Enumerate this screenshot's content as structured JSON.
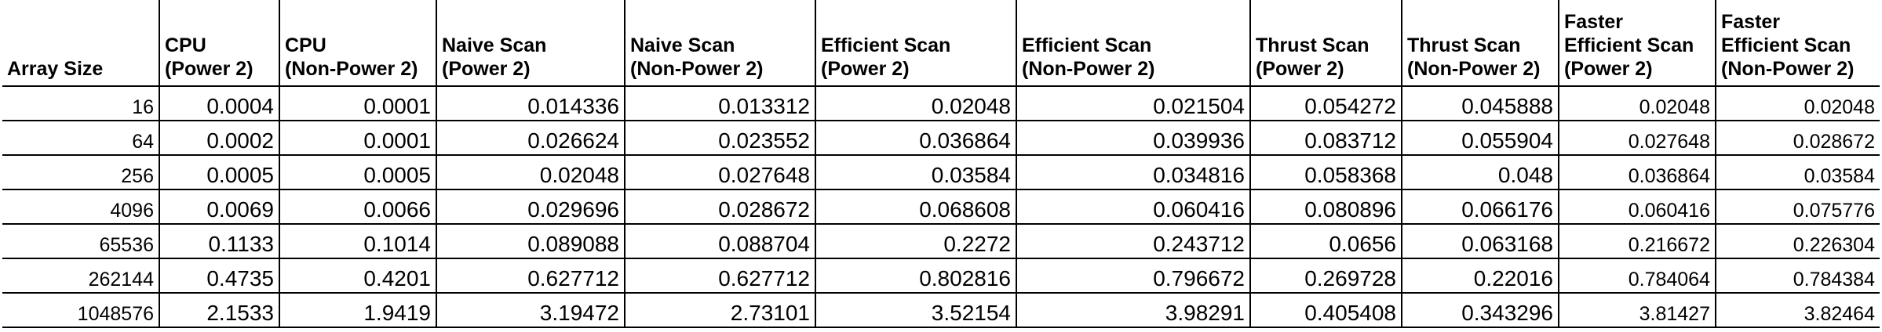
{
  "table": {
    "headers": [
      [
        "Array Size"
      ],
      [
        "CPU",
        "(Power 2)"
      ],
      [
        "CPU",
        "(Non-Power 2)"
      ],
      [
        "Naive Scan",
        "(Power 2)"
      ],
      [
        "Naive Scan",
        "(Non-Power 2)"
      ],
      [
        "Efficient Scan",
        "(Power 2)"
      ],
      [
        "Efficient Scan",
        "(Non-Power 2)"
      ],
      [
        "Thrust Scan",
        "(Power 2)"
      ],
      [
        "Thrust Scan",
        "(Non-Power 2)"
      ],
      [
        "Faster",
        "Efficient Scan",
        "(Power 2)"
      ],
      [
        "Faster",
        "Efficient Scan",
        "(Non-Power 2)"
      ]
    ],
    "rows": [
      [
        "16",
        "0.0004",
        "0.0001",
        "0.014336",
        "0.013312",
        "0.02048",
        "0.021504",
        "0.054272",
        "0.045888",
        "0.02048",
        "0.02048"
      ],
      [
        "64",
        "0.0002",
        "0.0001",
        "0.026624",
        "0.023552",
        "0.036864",
        "0.039936",
        "0.083712",
        "0.055904",
        "0.027648",
        "0.028672"
      ],
      [
        "256",
        "0.0005",
        "0.0005",
        "0.02048",
        "0.027648",
        "0.03584",
        "0.034816",
        "0.058368",
        "0.048",
        "0.036864",
        "0.03584"
      ],
      [
        "4096",
        "0.0069",
        "0.0066",
        "0.029696",
        "0.028672",
        "0.068608",
        "0.060416",
        "0.080896",
        "0.066176",
        "0.060416",
        "0.075776"
      ],
      [
        "65536",
        "0.1133",
        "0.1014",
        "0.089088",
        "0.088704",
        "0.2272",
        "0.243712",
        "0.0656",
        "0.063168",
        "0.216672",
        "0.226304"
      ],
      [
        "262144",
        "0.4735",
        "0.4201",
        "0.627712",
        "0.627712",
        "0.802816",
        "0.796672",
        "0.269728",
        "0.22016",
        "0.784064",
        "0.784384"
      ],
      [
        "1048576",
        "2.1533",
        "1.9419",
        "3.19472",
        "2.73101",
        "3.52154",
        "3.98291",
        "0.405408",
        "0.343296",
        "3.81427",
        "3.82464"
      ]
    ]
  }
}
